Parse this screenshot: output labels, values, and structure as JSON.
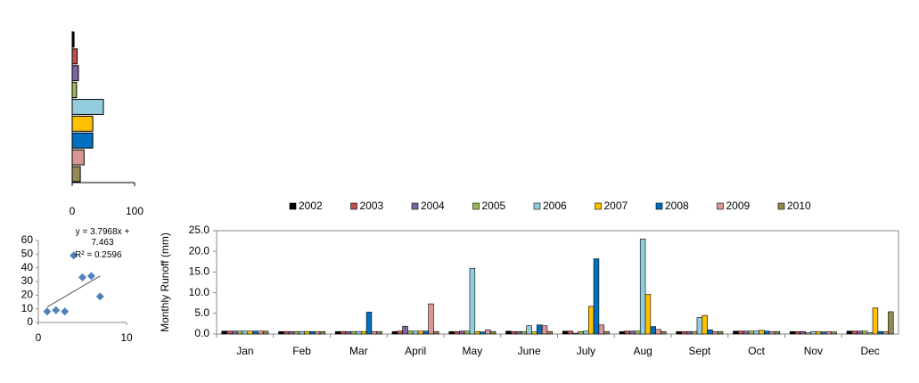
{
  "chart_data": [
    {
      "type": "hbar",
      "values": [
        3,
        8,
        10,
        7,
        50,
        33,
        33,
        19,
        13
      ],
      "colors": [
        "#000000",
        "#c0504d",
        "#8064a2",
        "#9bbb59",
        "#93cddd",
        "#ffc000",
        "#0070c0",
        "#d99694",
        "#948a54"
      ],
      "xlim": [
        0,
        100
      ],
      "xticks": [
        0,
        100
      ]
    },
    {
      "type": "scatter",
      "x": [
        1,
        2,
        3,
        4,
        5,
        6,
        7
      ],
      "values": [
        8,
        9,
        8,
        49,
        33,
        34,
        19
      ],
      "color": "#4f81bd",
      "xlim": [
        0,
        10
      ],
      "xticks": [
        0,
        10
      ],
      "ylim": [
        0,
        60
      ],
      "yticks": [
        0,
        10,
        20,
        30,
        40,
        50,
        60
      ],
      "trendline": {
        "slope": 3.7968,
        "intercept": 7.463
      },
      "annotations": [
        "y = 3.7968x + 7.463",
        "R² = 0.2596"
      ]
    },
    {
      "type": "bar",
      "y_label": "Monthly  Runoff (mm)",
      "categories": [
        "Jan",
        "Feb",
        "Mar",
        "April",
        "May",
        "June",
        "July",
        "Aug",
        "Sept",
        "Oct",
        "Nov",
        "Dec"
      ],
      "ylim": [
        0,
        25
      ],
      "yticks": [
        {
          "value": 0,
          "label": "0.0"
        },
        {
          "value": 5,
          "label": "5.0"
        },
        {
          "value": 10,
          "label": "10.0"
        },
        {
          "value": 15,
          "label": "15.0"
        },
        {
          "value": 20,
          "label": "20.0"
        },
        {
          "value": 25,
          "label": "25.0"
        }
      ],
      "series": [
        {
          "name": "2002",
          "color": "#000000",
          "values": [
            0.7,
            0.6,
            0.6,
            0.6,
            0.6,
            0.7,
            0.7,
            0.6,
            0.6,
            0.7,
            0.6,
            0.7
          ]
        },
        {
          "name": "2003",
          "color": "#c0504d",
          "values": [
            0.7,
            0.6,
            0.6,
            0.7,
            0.6,
            0.6,
            0.7,
            0.7,
            0.6,
            0.7,
            0.6,
            0.7
          ]
        },
        {
          "name": "2004",
          "color": "#8064a2",
          "values": [
            0.7,
            0.6,
            0.6,
            1.9,
            0.7,
            0.6,
            0.2,
            0.7,
            0.6,
            0.7,
            0.6,
            0.7
          ]
        },
        {
          "name": "2005",
          "color": "#9bbb59",
          "values": [
            0.7,
            0.6,
            0.6,
            0.7,
            0.7,
            0.6,
            0.6,
            0.7,
            0.6,
            0.7,
            0.3,
            0.7
          ]
        },
        {
          "name": "2006",
          "color": "#93cddd",
          "values": [
            0.7,
            0.6,
            0.6,
            0.7,
            15.9,
            2.0,
            0.7,
            23.0,
            4.0,
            0.7,
            0.6,
            0.3
          ]
        },
        {
          "name": "2007",
          "color": "#ffc000",
          "values": [
            0.7,
            0.6,
            0.6,
            0.7,
            0.6,
            0.5,
            6.7,
            9.6,
            4.5,
            0.9,
            0.6,
            6.3
          ]
        },
        {
          "name": "2008",
          "color": "#0070c0",
          "values": [
            0.7,
            0.6,
            5.3,
            0.7,
            0.5,
            2.2,
            18.2,
            1.8,
            1.0,
            0.7,
            0.5,
            0.6
          ]
        },
        {
          "name": "2009",
          "color": "#d99694",
          "values": [
            0.7,
            0.6,
            0.6,
            7.3,
            1.0,
            2.0,
            2.2,
            1.1,
            0.6,
            0.6,
            0.6,
            0.6
          ]
        },
        {
          "name": "2010",
          "color": "#948a54",
          "values": [
            0.7,
            0.6,
            0.6,
            0.6,
            0.6,
            0.6,
            0.6,
            0.6,
            0.6,
            0.6,
            0.5,
            5.4
          ]
        }
      ]
    }
  ]
}
